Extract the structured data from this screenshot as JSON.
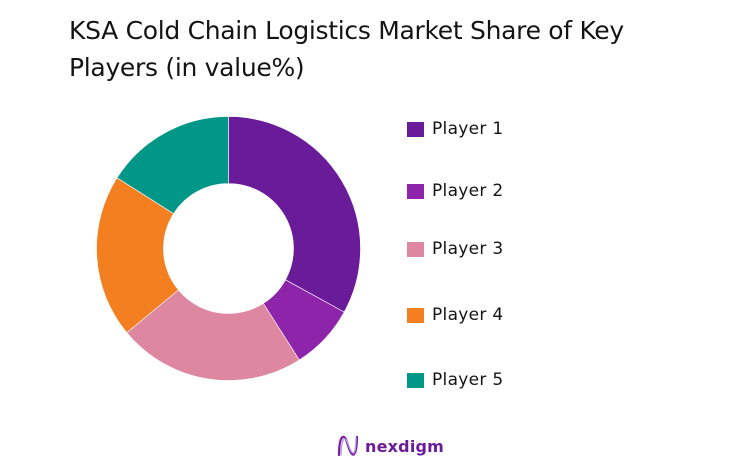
{
  "title": "KSA Cold Chain Logistics Market Share of Key Players (in value%)",
  "logo": {
    "icon": "nexdigm-wave-icon",
    "text": "nexdigm",
    "color": "#6a1b9a"
  },
  "chart_data": {
    "type": "pie",
    "variant": "donut",
    "title": "KSA Cold Chain Logistics Market Share of Key Players (in value%)",
    "categories": [
      "Player 1",
      "Player 2",
      "Player 3",
      "Player 4",
      "Player 5"
    ],
    "values": [
      33,
      8,
      23,
      20,
      16
    ],
    "unit": "%",
    "colors": [
      "#6a1b9a",
      "#8e24aa",
      "#de87a0",
      "#f47f20",
      "#009688"
    ],
    "start_angle": "12 o'clock",
    "direction": "clockwise",
    "legend_position": "right",
    "data_labels": false
  },
  "legend": [
    {
      "label": "Player 1",
      "color": "#6a1b9a"
    },
    {
      "label": "Player 2",
      "color": "#8e24aa"
    },
    {
      "label": "Player 3",
      "color": "#de87a0"
    },
    {
      "label": "Player 4",
      "color": "#f47f20"
    },
    {
      "label": "Player 5",
      "color": "#009688"
    }
  ]
}
